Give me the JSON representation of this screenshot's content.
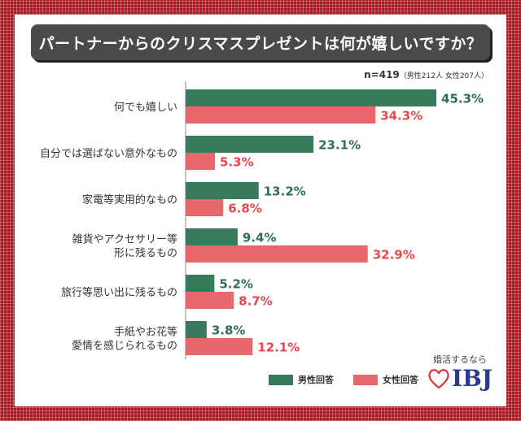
{
  "title": "パートナーからのクリスマスプレゼントは何が嬉しいですか？",
  "sample_main": "n=419",
  "sample_detail": "（男性212人 女性207人）",
  "legend": {
    "male": "男性回答",
    "female": "女性回答"
  },
  "brand": {
    "tagline": "婚活するなら",
    "logo": "IBJ",
    "heart_icon": "heart-outline-icon"
  },
  "colors": {
    "male": "#3a7a5c",
    "female": "#e8676b",
    "male_text": "#2f6f50",
    "female_text": "#e8474c",
    "axis": "#888888"
  },
  "chart_data": {
    "type": "bar",
    "orientation": "horizontal",
    "title": "パートナーからのクリスマスプレゼントは何が嬉しいですか？",
    "categories": [
      [
        "何でも嬉しい"
      ],
      [
        "自分では選ばない意外なもの"
      ],
      [
        "家電等実用的なもの"
      ],
      [
        "雑貨やアクセサリー等",
        "形に残るもの"
      ],
      [
        "旅行等思い出に残るもの"
      ],
      [
        "手紙やお花等",
        "愛情を感じられるもの"
      ]
    ],
    "series": [
      {
        "name": "男性回答",
        "values": [
          45.3,
          23.1,
          13.2,
          9.4,
          5.2,
          3.8
        ]
      },
      {
        "name": "女性回答",
        "values": [
          34.3,
          5.3,
          6.8,
          32.9,
          8.7,
          12.1
        ]
      }
    ],
    "xlim": [
      0,
      50
    ],
    "unit": "%"
  }
}
